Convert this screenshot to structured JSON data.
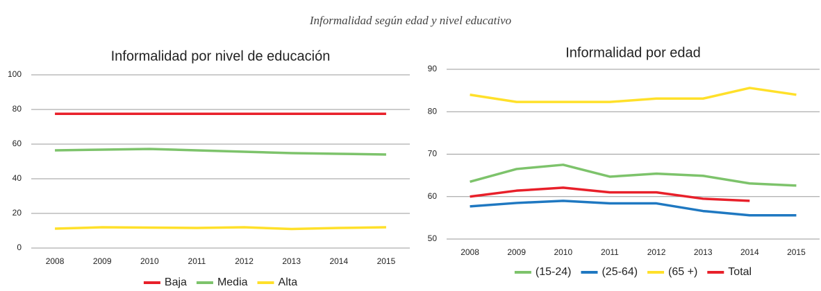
{
  "title": "Informalidad según edad y nivel educativo",
  "chart_data": [
    {
      "type": "line",
      "title": "Informalidad por nivel de educación",
      "categories": [
        "2008",
        "2009",
        "2010",
        "2011",
        "2012",
        "2013",
        "2014",
        "2015"
      ],
      "series": [
        {
          "name": "Baja",
          "color": "#e8202a",
          "values": [
            77.5,
            77.5,
            77.5,
            77.5,
            77.5,
            77.5,
            77.5,
            77.5
          ]
        },
        {
          "name": "Media",
          "color": "#7dc36b",
          "values": [
            56.4,
            56.8,
            57.2,
            56.4,
            55.6,
            54.8,
            54.4,
            54
          ]
        },
        {
          "name": "Alta",
          "color": "#ffe02a",
          "values": [
            11.2,
            12,
            11.8,
            11.6,
            12,
            11,
            11.6,
            12
          ]
        }
      ],
      "ylim": [
        0,
        100
      ],
      "yticks": [
        0,
        20,
        40,
        60,
        80,
        100
      ],
      "grid": true
    },
    {
      "type": "line",
      "title": "Informalidad por edad",
      "categories": [
        "2008",
        "2009",
        "2010",
        "2011",
        "2012",
        "2013",
        "2014",
        "2015"
      ],
      "series": [
        {
          "name": "(15-24)",
          "color": "#7dc36b",
          "values": [
            63.5,
            66.5,
            67.5,
            64.7,
            65.4,
            64.9,
            63.1,
            62.6
          ]
        },
        {
          "name": "(25-64)",
          "color": "#1f78c1",
          "values": [
            57.7,
            58.5,
            59,
            58.4,
            58.4,
            56.6,
            55.6,
            55.6
          ]
        },
        {
          "name": "(65 +)",
          "color": "#ffe02a",
          "values": [
            84,
            82.3,
            82.3,
            82.3,
            83.1,
            83.1,
            85.6,
            84
          ]
        },
        {
          "name": "Total",
          "color": "#e8202a",
          "values": [
            60,
            61.4,
            62.1,
            61,
            61,
            59.5,
            59,
            null
          ]
        }
      ],
      "ylim": [
        50,
        90
      ],
      "yticks": [
        50,
        60,
        70,
        80,
        90
      ],
      "grid": true
    }
  ]
}
